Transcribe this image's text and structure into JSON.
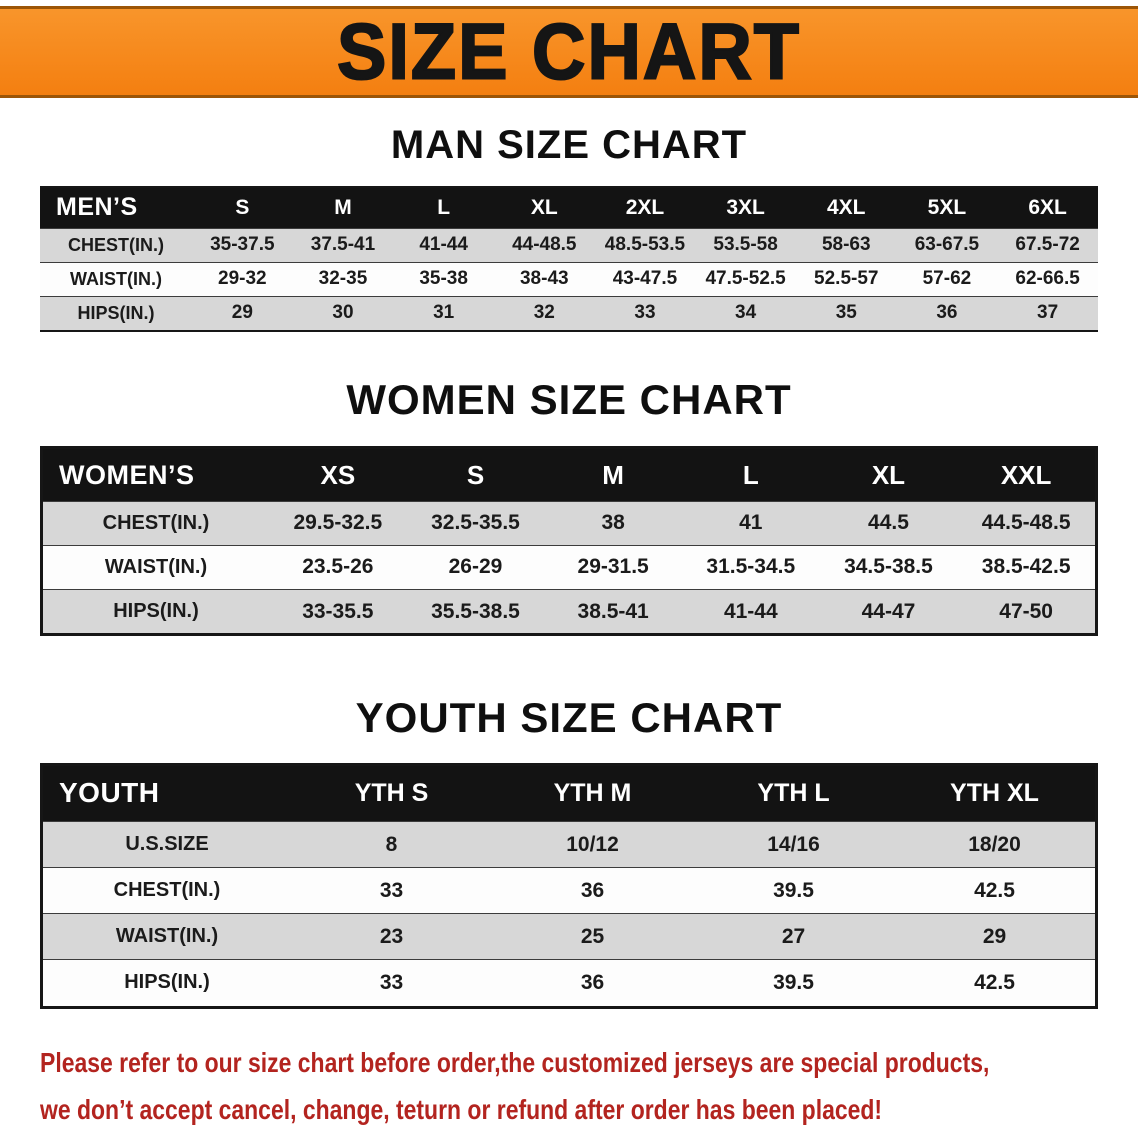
{
  "banner": {
    "title": "SIZE CHART",
    "bg_color": "#f6861f",
    "text_color": "#151515"
  },
  "sections": [
    {
      "key": "men",
      "heading": "MAN SIZE CHART",
      "table": {
        "header_label": "MEN’S",
        "columns": [
          "S",
          "M",
          "L",
          "XL",
          "2XL",
          "3XL",
          "4XL",
          "5XL",
          "6XL"
        ],
        "rows": [
          {
            "label": "CHEST(IN.)",
            "values": [
              "35-37.5",
              "37.5-41",
              "41-44",
              "44-48.5",
              "48.5-53.5",
              "53.5-58",
              "58-63",
              "63-67.5",
              "67.5-72"
            ]
          },
          {
            "label": "WAIST(IN.)",
            "values": [
              "29-32",
              "32-35",
              "35-38",
              "38-43",
              "43-47.5",
              "47.5-52.5",
              "52.5-57",
              "57-62",
              "62-66.5"
            ]
          },
          {
            "label": "HIPS(IN.)",
            "values": [
              "29",
              "30",
              "31",
              "32",
              "33",
              "34",
              "35",
              "36",
              "37"
            ]
          }
        ]
      }
    },
    {
      "key": "women",
      "heading": "WOMEN SIZE CHART",
      "table": {
        "header_label": "WOMEN’S",
        "columns": [
          "XS",
          "S",
          "M",
          "L",
          "XL",
          "XXL"
        ],
        "rows": [
          {
            "label": "CHEST(IN.)",
            "values": [
              "29.5-32.5",
              "32.5-35.5",
              "38",
              "41",
              "44.5",
              "44.5-48.5"
            ]
          },
          {
            "label": "WAIST(IN.)",
            "values": [
              "23.5-26",
              "26-29",
              "29-31.5",
              "31.5-34.5",
              "34.5-38.5",
              "38.5-42.5"
            ]
          },
          {
            "label": "HIPS(IN.)",
            "values": [
              "33-35.5",
              "35.5-38.5",
              "38.5-41",
              "41-44",
              "44-47",
              "47-50"
            ]
          }
        ]
      }
    },
    {
      "key": "youth",
      "heading": "YOUTH SIZE CHART",
      "table": {
        "header_label": "YOUTH",
        "columns": [
          "YTH S",
          "YTH M",
          "YTH L",
          "YTH XL"
        ],
        "rows": [
          {
            "label": "U.S.SIZE",
            "values": [
              "8",
              "10/12",
              "14/16",
              "18/20"
            ]
          },
          {
            "label": "CHEST(IN.)",
            "values": [
              "33",
              "36",
              "39.5",
              "42.5"
            ]
          },
          {
            "label": "WAIST(IN.)",
            "values": [
              "23",
              "25",
              "27",
              "29"
            ]
          },
          {
            "label": "HIPS(IN.)",
            "values": [
              "33",
              "36",
              "39.5",
              "42.5"
            ]
          }
        ]
      }
    }
  ],
  "disclaimer": {
    "lines": [
      "Please refer to our size chart before order,the customized jerseys are special products,",
      "we don’t accept cancel, change, teturn or refund after order has been placed!"
    ],
    "text_color": "#b3241f"
  },
  "colors": {
    "banner_orange": "#f6861f",
    "table_header_black": "#131313",
    "row_gray": "#d7d7d7",
    "row_white": "#fdfdfd",
    "disclaimer_red": "#b3241f"
  }
}
